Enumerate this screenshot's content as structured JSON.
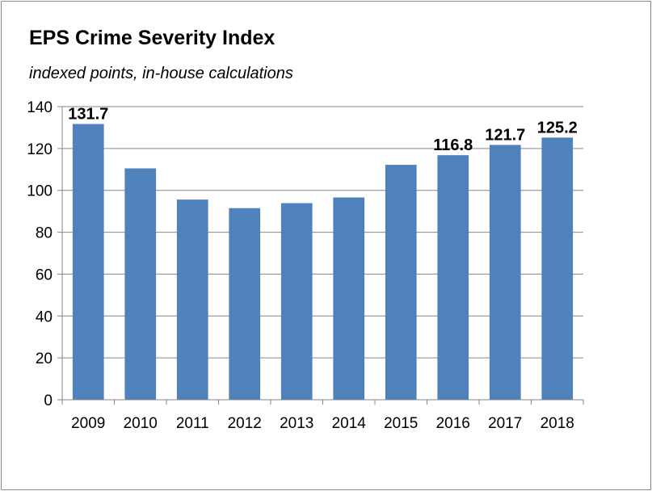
{
  "chart_data": {
    "type": "bar",
    "title": "EPS Crime Severity Index",
    "subtitle": "indexed points, in-house calculations",
    "xlabel": "",
    "ylabel": "",
    "categories": [
      "2009",
      "2010",
      "2011",
      "2012",
      "2013",
      "2014",
      "2015",
      "2016",
      "2017",
      "2018"
    ],
    "values": [
      131.7,
      110.5,
      95.6,
      91.5,
      93.9,
      96.6,
      112.2,
      116.8,
      121.7,
      125.2
    ],
    "data_labels": [
      "131.7",
      null,
      null,
      null,
      null,
      null,
      null,
      "116.8",
      "121.7",
      "125.2"
    ],
    "ylim": [
      0,
      140
    ],
    "yticks": [
      0,
      20,
      40,
      60,
      80,
      100,
      120,
      140
    ],
    "grid": true,
    "legend": "none",
    "bar_color": "#4f81bd",
    "grid_color": "#868686"
  }
}
